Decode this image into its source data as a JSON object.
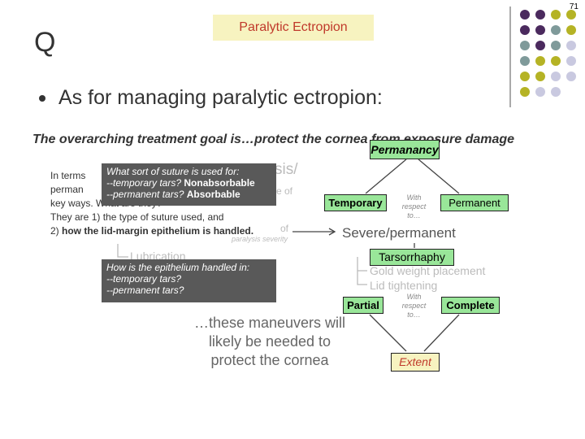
{
  "page_number": "71",
  "bullet_q": "Q",
  "title": "Paralytic Ectropion",
  "question": "As for managing paralytic ectropion:",
  "goal": "The overarching treatment goal is…protect the cornea from exposure damage",
  "background_text": {
    "lines": [
      "In terms",
      "perman",
      "key ways. What are they?",
      "They are 1) the type of suture used, and"
    ],
    "last_prefix": "2)",
    "last_bold": "how the lid-margin epithelium is handled."
  },
  "suture_box": {
    "question": "What sort of suture is used for:",
    "temporary_label": "--temporary tars?",
    "temporary_answer": "Nonabsorbable",
    "permanent_label": "--permanent tars?",
    "permanent_answer": "Absorbable"
  },
  "epithelium_box": {
    "lines": [
      "How is the epithelium handled in:",
      "--temporary tars?",
      "--permanent tars?"
    ]
  },
  "faded": [
    "sis/",
    "e of",
    "of",
    "paralysis severity"
  ],
  "diagram": {
    "permanency": "Permanancy",
    "temporary": "Temporary",
    "with_respect_1": "With respect to…",
    "permanent": "Permanent",
    "severe": "Severe/permanent",
    "tarsorrhaphy": "Tarsorrhaphy",
    "gold": "Gold weight placement",
    "lid": "Lid tightening",
    "lubrication": "Lubrication",
    "partial": "Partial",
    "with_respect_2": "With respect to…",
    "complete": "Complete",
    "maneuvers": "…these maneuvers will likely be needed to protect the cornea",
    "extent": "Extent"
  }
}
